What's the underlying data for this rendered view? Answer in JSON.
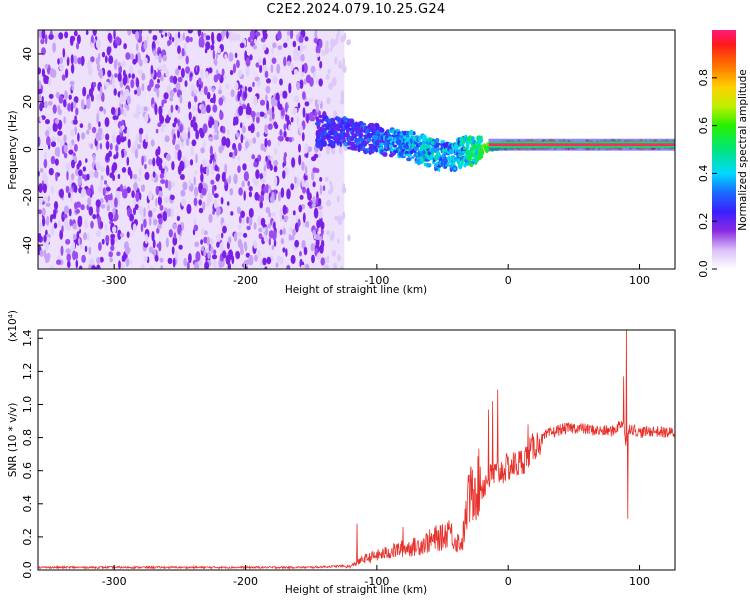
{
  "title": "C2E2.2024.079.10.25.G24",
  "colors": {
    "axis": "#000000",
    "snr_line": "#e8302a",
    "spectrogram_noise": "#7a20e6",
    "spectrogram_trace": "#ff2a55"
  },
  "colorbar": {
    "label": "Normalized spectral amplitude",
    "ticks": [
      "0.0",
      "0.2",
      "0.4",
      "0.6",
      "0.8"
    ],
    "tick_values": [
      0.0,
      0.2,
      0.4,
      0.6,
      0.8
    ],
    "range": [
      0,
      1
    ],
    "colormap": "rainbow (white→violet→blue→cyan→green→yellow→red→magenta)"
  },
  "chart_data": [
    {
      "type": "heatmap",
      "xlabel": "Height of straight line (km)",
      "ylabel": "Frequency (Hz)",
      "xlim": [
        -358,
        127
      ],
      "ylim": [
        -50,
        50
      ],
      "xticks": [
        "-300",
        "-200",
        "-100",
        "0",
        "100"
      ],
      "xtick_values": [
        -300,
        -200,
        -100,
        0,
        100
      ],
      "yticks": [
        "-40",
        "-20",
        "0",
        "20",
        "40"
      ],
      "ytick_values": [
        -40,
        -20,
        0,
        20,
        40
      ],
      "noise_region": {
        "x": [
          -358,
          -140
        ],
        "amplitude": 0.15
      },
      "signal_trace": {
        "x": [
          -145,
          -125,
          -110,
          -95,
          -80,
          -65,
          -55,
          -45,
          -35,
          -25,
          -15,
          0,
          20,
          50,
          85,
          95,
          127
        ],
        "y": [
          8,
          7,
          5,
          4,
          2,
          0,
          -2,
          -3,
          -1,
          0,
          1,
          2,
          2,
          2,
          2,
          2,
          2
        ],
        "amplitude": [
          0.3,
          0.35,
          0.35,
          0.4,
          0.45,
          0.5,
          0.5,
          0.45,
          0.5,
          0.6,
          0.7,
          0.8,
          0.9,
          0.9,
          0.85,
          0.9,
          0.9
        ]
      }
    },
    {
      "type": "line",
      "xlabel": "Height of straight line (km)",
      "ylabel": "SNR (10 * v/v)",
      "y_multiplier": "(x10⁴)",
      "xlim": [
        -358,
        127
      ],
      "ylim": [
        0,
        1.45
      ],
      "xticks": [
        "-300",
        "-200",
        "-100",
        "0",
        "100"
      ],
      "xtick_values": [
        -300,
        -200,
        -100,
        0,
        100
      ],
      "yticks": [
        "0.0",
        "0.2",
        "0.4",
        "0.6",
        "0.8",
        "1.0",
        "1.2",
        "1.4"
      ],
      "ytick_values": [
        0.0,
        0.2,
        0.4,
        0.6,
        0.8,
        1.0,
        1.2,
        1.4
      ],
      "series": [
        {
          "x": [
            -358,
            -300,
            -250,
            -200,
            -150,
            -120,
            -110,
            -100,
            -90,
            -80,
            -70,
            -60,
            -50,
            -45,
            -40,
            -35,
            -30,
            -25,
            -20,
            -15,
            -10,
            -5,
            0,
            10,
            20,
            30,
            40,
            50,
            60,
            70,
            80,
            88,
            90,
            91,
            93,
            100,
            110,
            120,
            127
          ],
          "y": [
            0.01,
            0.01,
            0.01,
            0.01,
            0.01,
            0.02,
            0.06,
            0.08,
            0.1,
            0.12,
            0.13,
            0.16,
            0.18,
            0.22,
            0.16,
            0.15,
            0.4,
            0.45,
            0.5,
            0.55,
            0.58,
            0.6,
            0.62,
            0.65,
            0.75,
            0.82,
            0.85,
            0.86,
            0.85,
            0.84,
            0.84,
            0.9,
            0.7,
            0.85,
            0.86,
            0.83,
            0.84,
            0.83,
            0.83
          ],
          "spikes": [
            {
              "x": -115,
              "y": 0.28
            },
            {
              "x": -80,
              "y": 0.26
            },
            {
              "x": -55,
              "y": 0.27
            },
            {
              "x": -45,
              "y": 0.3
            },
            {
              "x": -30,
              "y": 0.53
            },
            {
              "x": -25,
              "y": 0.55
            },
            {
              "x": -15,
              "y": 0.97
            },
            {
              "x": -12,
              "y": 1.02
            },
            {
              "x": -8,
              "y": 1.09
            },
            {
              "x": 15,
              "y": 0.88
            },
            {
              "x": 88,
              "y": 1.17
            },
            {
              "x": 90,
              "y": 1.45
            },
            {
              "x": 91,
              "y": 0.31
            }
          ]
        }
      ]
    }
  ]
}
